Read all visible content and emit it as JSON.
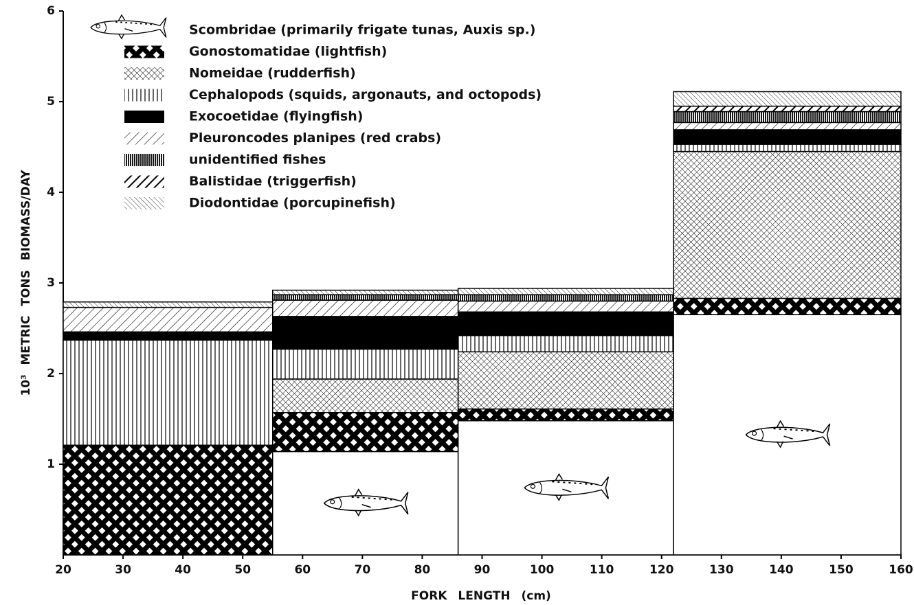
{
  "chart_data": {
    "type": "histogram",
    "xlabel": "FORK LENGTH (cm)",
    "ylabel": "10³ METRIC TONS BIOMASS/DAY",
    "bins": [
      20,
      55,
      86,
      122,
      160
    ],
    "xlim": [
      20,
      160
    ],
    "xticks": [
      20,
      30,
      40,
      50,
      60,
      70,
      80,
      90,
      100,
      110,
      120,
      130,
      140,
      150,
      160
    ],
    "ylim": [
      0,
      6
    ],
    "yticks": [
      1,
      2,
      3,
      4,
      5,
      6
    ],
    "stacked": true,
    "grid": false,
    "series": [
      {
        "name": "Scombridae (primarily frigate tunas, Auxis sp.)",
        "color": "#000000",
        "pattern": "fish",
        "values": [
          0,
          1.14,
          1.48,
          2.65
        ]
      },
      {
        "name": "Gonostomatidae (lightfish)",
        "color": "#000000",
        "pattern": "bold-crosshatch",
        "values": [
          1.21,
          0.43,
          0.13,
          0.18
        ]
      },
      {
        "name": "Nomeidae (rudderfish)",
        "color": "#000000",
        "pattern": "fine-crosshatch",
        "values": [
          0,
          0.37,
          0.63,
          1.62
        ]
      },
      {
        "name": "Cephalopods (squids, argonauts, and octopods)",
        "color": "#000000",
        "pattern": "vertical",
        "values": [
          1.16,
          0.33,
          0.18,
          0.08
        ]
      },
      {
        "name": "Exocoetidae (flyingfish)",
        "color": "#000000",
        "pattern": "solid",
        "values": [
          0.09,
          0.36,
          0.26,
          0.16
        ]
      },
      {
        "name": "Pleuroncodes planipes (red crabs)",
        "color": "#000000",
        "pattern": "diagonal",
        "values": [
          0.27,
          0.18,
          0.12,
          0.08
        ]
      },
      {
        "name": "unidentified fishes",
        "color": "#000000",
        "pattern": "dense-vertical",
        "values": [
          0,
          0.06,
          0.07,
          0.12
        ]
      },
      {
        "name": "Balistidae (triggerfish)",
        "color": "#000000",
        "pattern": "bold-diagonal",
        "values": [
          0,
          0,
          0,
          0.06
        ]
      },
      {
        "name": "Diodontidae (porcupinefish)",
        "color": "#000000",
        "pattern": "back-diagonal",
        "values": [
          0.06,
          0.05,
          0.07,
          0.16
        ]
      }
    ]
  }
}
